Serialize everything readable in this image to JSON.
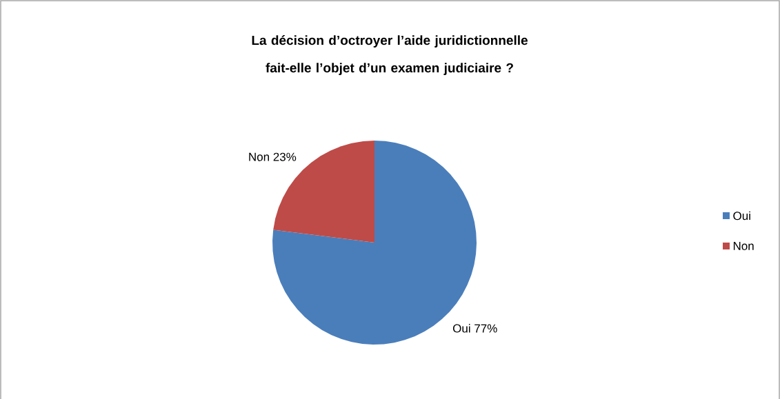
{
  "chart_data": {
    "type": "pie",
    "title": "La décision d’octroyer l’aide juridictionnelle fait-elle l’objet d’un examen judiciaire ?",
    "categories": [
      "Oui",
      "Non"
    ],
    "values": [
      77,
      23
    ],
    "colors": [
      "#4a7ebb",
      "#be4b48"
    ],
    "value_labels": [
      "Oui 77%",
      "Non 23%"
    ],
    "legend": "right"
  }
}
